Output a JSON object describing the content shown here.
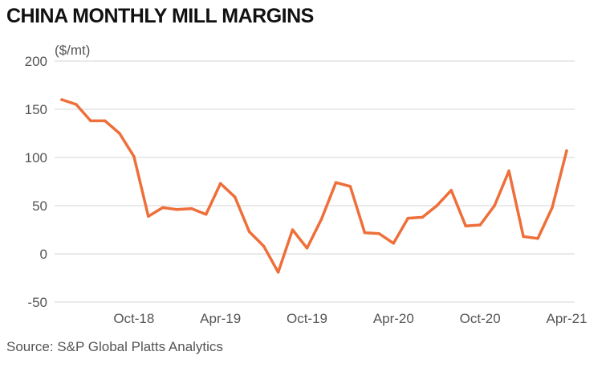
{
  "chart_data": {
    "type": "line",
    "title": "CHINA MONTHLY MILL MARGINS",
    "unit_label": "($/mt)",
    "source": "Source: S&P Global Platts Analytics",
    "ylim": [
      -50,
      200
    ],
    "yticks": [
      200,
      150,
      100,
      50,
      0,
      -50
    ],
    "grid": true,
    "line_color": "#ee6f3a",
    "x_tick_labels": [
      {
        "label": "Oct-18",
        "index": 5
      },
      {
        "label": "Apr-19",
        "index": 11
      },
      {
        "label": "Oct-19",
        "index": 17
      },
      {
        "label": "Apr-20",
        "index": 23
      },
      {
        "label": "Oct-20",
        "index": 29
      },
      {
        "label": "Apr-21",
        "index": 35
      }
    ],
    "series": [
      {
        "values": [
          160,
          155,
          138,
          138,
          125,
          101,
          39,
          48,
          46,
          47,
          41,
          73,
          59,
          23,
          8,
          -19,
          25,
          6,
          36,
          74,
          70,
          22,
          21,
          11,
          37,
          38,
          50,
          66,
          29,
          30,
          50,
          86,
          18,
          16,
          48,
          107
        ]
      }
    ]
  }
}
